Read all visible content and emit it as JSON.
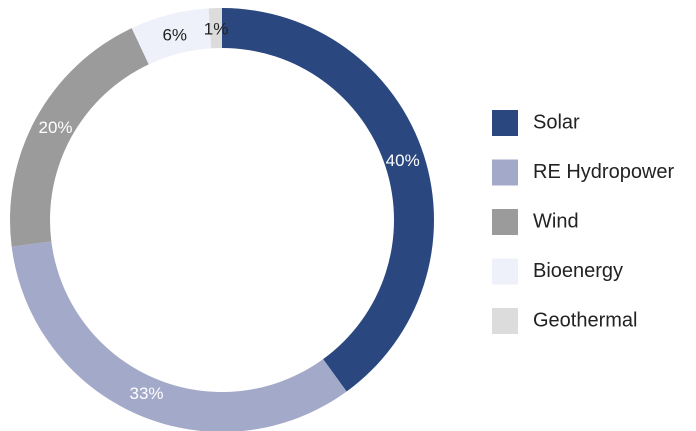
{
  "chart_data": {
    "type": "pie",
    "donut": true,
    "categories": [
      "Solar",
      "RE Hydropower",
      "Wind",
      "Bioenergy",
      "Geothermal"
    ],
    "values": [
      40,
      33,
      20,
      6,
      1
    ],
    "value_labels": [
      "40%",
      "33%",
      "20%",
      "6%",
      "1%"
    ],
    "colors": [
      "#2b477f",
      "#a3a9c9",
      "#9b9b9b",
      "#eef0fa",
      "#dcdcdc"
    ],
    "legend": "right"
  }
}
